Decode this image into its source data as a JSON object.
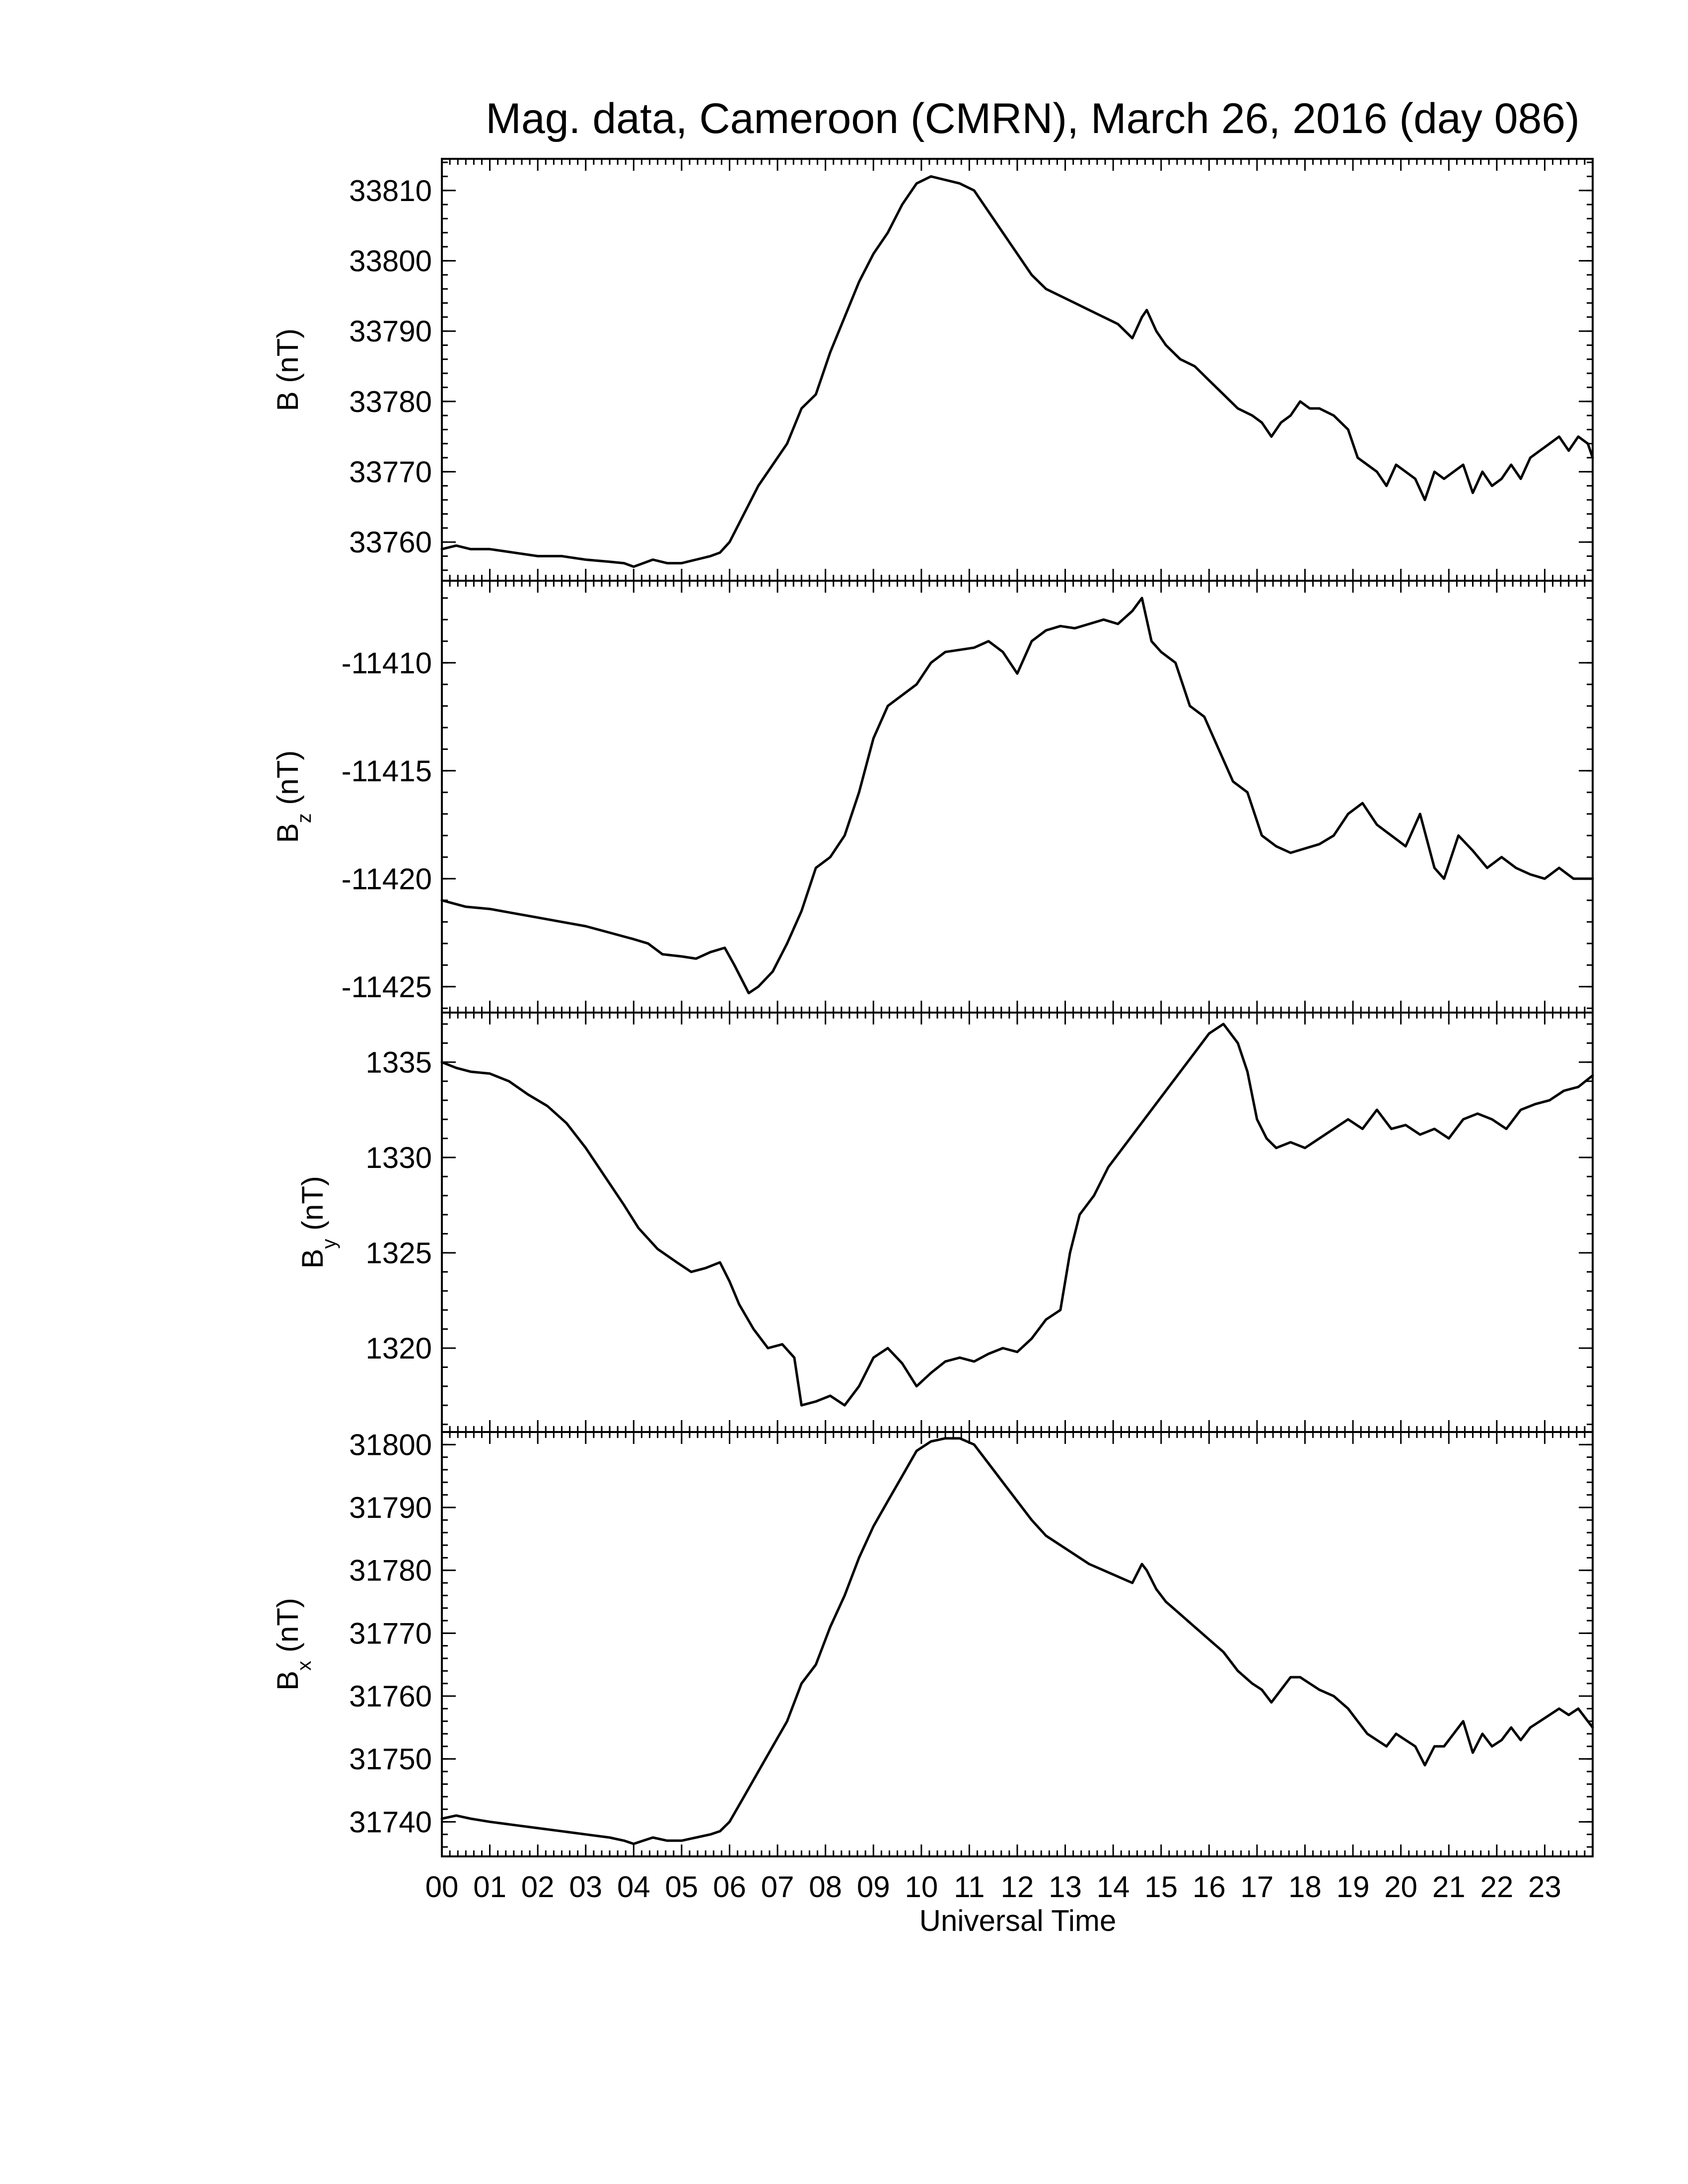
{
  "colors": {
    "line": "#000000",
    "axes": "#000000",
    "background": "#ffffff"
  },
  "chart_data": {
    "type": "line",
    "title": "Mag. data, Cameroon (CMRN), March 26, 2016 (day 086)",
    "xlabel": "Universal Time",
    "x_ticks": [
      "00",
      "01",
      "02",
      "03",
      "04",
      "05",
      "06",
      "07",
      "08",
      "09",
      "10",
      "11",
      "12",
      "13",
      "14",
      "15",
      "16",
      "17",
      "18",
      "19",
      "20",
      "21",
      "22",
      "23"
    ],
    "xlim": [
      0,
      24
    ],
    "grid": false,
    "panels": [
      {
        "name": "B",
        "ylabel_main": "B (nT)",
        "ylabel_sub": "",
        "ylabel_tail": "",
        "ylim": [
          33754.5,
          33814.5
        ],
        "yticks": [
          33760,
          33770,
          33780,
          33790,
          33800,
          33810
        ],
        "series": [
          {
            "x": [
              0,
              0.3,
              0.6,
              1,
              1.5,
              2,
              2.5,
              3,
              3.5,
              3.8,
              4,
              4.2,
              4.4,
              4.7,
              5,
              5.3,
              5.6,
              5.8,
              6,
              6.3,
              6.6,
              6.9,
              7.2,
              7.5,
              7.8,
              8.1,
              8.4,
              8.7,
              9,
              9.3,
              9.6,
              9.9,
              10.2,
              10.5,
              10.8,
              11.1,
              11.4,
              11.7,
              12,
              12.3,
              12.6,
              12.9,
              13.2,
              13.5,
              13.8,
              14.1,
              14.4,
              14.6,
              14.7,
              14.9,
              15.1,
              15.4,
              15.7,
              16,
              16.3,
              16.6,
              16.9,
              17.1,
              17.3,
              17.5,
              17.7,
              17.9,
              18.1,
              18.3,
              18.6,
              18.9,
              19.1,
              19.3,
              19.5,
              19.7,
              19.9,
              20.1,
              20.3,
              20.5,
              20.7,
              20.9,
              21.1,
              21.3,
              21.5,
              21.7,
              21.9,
              22.1,
              22.3,
              22.5,
              22.7,
              22.9,
              23.1,
              23.3,
              23.5,
              23.7,
              23.9,
              24
            ],
            "y": [
              33759,
              33759.5,
              33759,
              33759,
              33758.5,
              33758,
              33758,
              33757.5,
              33757.2,
              33757,
              33756.5,
              33757,
              33757.5,
              33757,
              33757,
              33757.5,
              33758,
              33758.5,
              33760,
              33764,
              33768,
              33771,
              33774,
              33779,
              33781,
              33787,
              33792,
              33797,
              33801,
              33804,
              33808,
              33811,
              33812,
              33811.5,
              33811,
              33810,
              33807,
              33804,
              33801,
              33798,
              33796,
              33795,
              33794,
              33793,
              33792,
              33791,
              33789,
              33792,
              33793,
              33790,
              33788,
              33786,
              33785,
              33783,
              33781,
              33779,
              33778,
              33777,
              33775,
              33777,
              33778,
              33780,
              33779,
              33779,
              33778,
              33776,
              33772,
              33771,
              33770,
              33768,
              33771,
              33770,
              33769,
              33766,
              33770,
              33769,
              33770,
              33771,
              33767,
              33770,
              33768,
              33769,
              33771,
              33769,
              33772,
              33773,
              33774,
              33775,
              33773,
              33775,
              33774,
              33772
            ]
          }
        ]
      },
      {
        "name": "Bz",
        "ylabel_main": "B",
        "ylabel_sub": "z",
        "ylabel_tail": " (nT)",
        "ylim": [
          -11426.2,
          -11406.2
        ],
        "yticks": [
          -11425,
          -11420,
          -11415,
          -11410
        ],
        "series": [
          {
            "x": [
              0,
              0.5,
              1,
              1.5,
              2,
              2.5,
              3,
              3.5,
              4,
              4.3,
              4.6,
              5,
              5.3,
              5.6,
              5.9,
              6.1,
              6.4,
              6.6,
              6.9,
              7.2,
              7.5,
              7.8,
              8.1,
              8.4,
              8.7,
              9,
              9.3,
              9.6,
              9.9,
              10.2,
              10.5,
              10.8,
              11.1,
              11.4,
              11.7,
              12,
              12.3,
              12.6,
              12.9,
              13.2,
              13.5,
              13.8,
              14.1,
              14.4,
              14.6,
              14.8,
              15,
              15.3,
              15.6,
              15.9,
              16.2,
              16.5,
              16.8,
              17.1,
              17.4,
              17.7,
              18,
              18.3,
              18.6,
              18.9,
              19.2,
              19.5,
              19.8,
              20.1,
              20.4,
              20.7,
              20.9,
              21.2,
              21.5,
              21.8,
              22.1,
              22.4,
              22.7,
              23,
              23.3,
              23.6,
              24
            ],
            "y": [
              -11421,
              -11421.3,
              -11421.4,
              -11421.6,
              -11421.8,
              -11422,
              -11422.2,
              -11422.5,
              -11422.8,
              -11423,
              -11423.5,
              -11423.6,
              -11423.7,
              -11423.4,
              -11423.2,
              -11424,
              -11425.3,
              -11425,
              -11424.3,
              -11423,
              -11421.5,
              -11419.5,
              -11419,
              -11418,
              -11416,
              -11413.5,
              -11412,
              -11411.5,
              -11411,
              -11410,
              -11409.5,
              -11409.4,
              -11409.3,
              -11409,
              -11409.5,
              -11410.5,
              -11409,
              -11408.5,
              -11408.3,
              -11408.4,
              -11408.2,
              -11408,
              -11408.2,
              -11407.6,
              -11407,
              -11409,
              -11409.5,
              -11410,
              -11412,
              -11412.5,
              -11414,
              -11415.5,
              -11416,
              -11418,
              -11418.5,
              -11418.8,
              -11418.6,
              -11418.4,
              -11418,
              -11417,
              -11416.5,
              -11417.5,
              -11418,
              -11418.5,
              -11417,
              -11419.5,
              -11420,
              -11418,
              -11418.7,
              -11419.5,
              -11419,
              -11419.5,
              -11419.8,
              -11420,
              -11419.5,
              -11420,
              -11420
            ]
          }
        ]
      },
      {
        "name": "By",
        "ylabel_main": "B",
        "ylabel_sub": "y",
        "ylabel_tail": " (nT)",
        "ylim": [
          1315.6,
          1337.6
        ],
        "yticks": [
          1320,
          1325,
          1330,
          1335
        ],
        "series": [
          {
            "x": [
              0,
              0.3,
              0.6,
              1,
              1.4,
              1.8,
              2.2,
              2.6,
              3,
              3.4,
              3.8,
              4.1,
              4.5,
              4.9,
              5.2,
              5.5,
              5.8,
              6,
              6.2,
              6.5,
              6.8,
              7.1,
              7.35,
              7.5,
              7.8,
              8.1,
              8.4,
              8.7,
              9,
              9.3,
              9.6,
              9.9,
              10.2,
              10.5,
              10.8,
              11.1,
              11.4,
              11.7,
              12,
              12.3,
              12.6,
              12.9,
              13.1,
              13.3,
              13.6,
              13.9,
              14.2,
              14.5,
              14.8,
              15.1,
              15.4,
              15.7,
              16,
              16.3,
              16.6,
              16.8,
              17,
              17.2,
              17.4,
              17.7,
              18,
              18.3,
              18.6,
              18.9,
              19.2,
              19.5,
              19.8,
              20.1,
              20.4,
              20.7,
              21,
              21.3,
              21.6,
              21.9,
              22.2,
              22.5,
              22.8,
              23.1,
              23.4,
              23.7,
              24
            ],
            "y": [
              1335,
              1334.7,
              1334.5,
              1334.4,
              1334,
              1333.3,
              1332.7,
              1331.8,
              1330.5,
              1329,
              1327.5,
              1326.3,
              1325.2,
              1324.5,
              1324,
              1324.2,
              1324.5,
              1323.5,
              1322.3,
              1321,
              1320,
              1320.2,
              1319.5,
              1317,
              1317.2,
              1317.5,
              1317,
              1318,
              1319.5,
              1320,
              1319.2,
              1318,
              1318.7,
              1319.3,
              1319.5,
              1319.3,
              1319.7,
              1320,
              1319.8,
              1320.5,
              1321.5,
              1322,
              1325,
              1327,
              1328,
              1329.5,
              1330.5,
              1331.5,
              1332.5,
              1333.5,
              1334.5,
              1335.5,
              1336.5,
              1337,
              1336,
              1334.5,
              1332,
              1331,
              1330.5,
              1330.8,
              1330.5,
              1331,
              1331.5,
              1332,
              1331.5,
              1332.5,
              1331.5,
              1331.7,
              1331.2,
              1331.5,
              1331,
              1332,
              1332.3,
              1332,
              1331.5,
              1332.5,
              1332.8,
              1333,
              1333.5,
              1333.7,
              1334.3
            ]
          }
        ]
      },
      {
        "name": "Bx",
        "ylabel_main": "B",
        "ylabel_sub": "x",
        "ylabel_tail": " (nT)",
        "ylim": [
          31734.5,
          31802
        ],
        "yticks": [
          31740,
          31750,
          31760,
          31770,
          31780,
          31790,
          31800
        ],
        "series": [
          {
            "x": [
              0,
              0.3,
              0.6,
              1,
              1.5,
              2,
              2.5,
              3,
              3.5,
              3.8,
              4,
              4.2,
              4.4,
              4.7,
              5,
              5.3,
              5.6,
              5.8,
              6,
              6.3,
              6.6,
              6.9,
              7.2,
              7.5,
              7.8,
              8.1,
              8.4,
              8.7,
              9,
              9.3,
              9.6,
              9.9,
              10.2,
              10.5,
              10.8,
              11.1,
              11.4,
              11.7,
              12,
              12.3,
              12.6,
              12.9,
              13.2,
              13.5,
              13.8,
              14.1,
              14.4,
              14.6,
              14.7,
              14.9,
              15.1,
              15.4,
              15.7,
              16,
              16.3,
              16.6,
              16.9,
              17.1,
              17.3,
              17.5,
              17.7,
              17.9,
              18.1,
              18.3,
              18.6,
              18.9,
              19.1,
              19.3,
              19.5,
              19.7,
              19.9,
              20.1,
              20.3,
              20.5,
              20.7,
              20.9,
              21.1,
              21.3,
              21.5,
              21.7,
              21.9,
              22.1,
              22.3,
              22.5,
              22.7,
              22.9,
              23.1,
              23.3,
              23.5,
              23.7,
              23.9,
              24
            ],
            "y": [
              31740.5,
              31741,
              31740.5,
              31740,
              31739.5,
              31739,
              31738.5,
              31738,
              31737.5,
              31737,
              31736.5,
              31737,
              31737.5,
              31737,
              31737,
              31737.5,
              31738,
              31738.5,
              31740,
              31744,
              31748,
              31752,
              31756,
              31762,
              31765,
              31771,
              31776,
              31782,
              31787,
              31791,
              31795,
              31799,
              31800.5,
              31801,
              31801,
              31800,
              31797,
              31794,
              31791,
              31788,
              31785.5,
              31784,
              31782.5,
              31781,
              31780,
              31779,
              31778,
              31781,
              31780,
              31777,
              31775,
              31773,
              31771,
              31769,
              31767,
              31764,
              31762,
              31761,
              31759,
              31761,
              31763,
              31763,
              31762,
              31761,
              31760,
              31758,
              31756,
              31754,
              31753,
              31752,
              31754,
              31753,
              31752,
              31749,
              31752,
              31752,
              31754,
              31756,
              31751,
              31754,
              31752,
              31753,
              31755,
              31753,
              31755,
              31756,
              31757,
              31758,
              31757,
              31758,
              31756,
              31755
            ]
          }
        ]
      }
    ]
  }
}
